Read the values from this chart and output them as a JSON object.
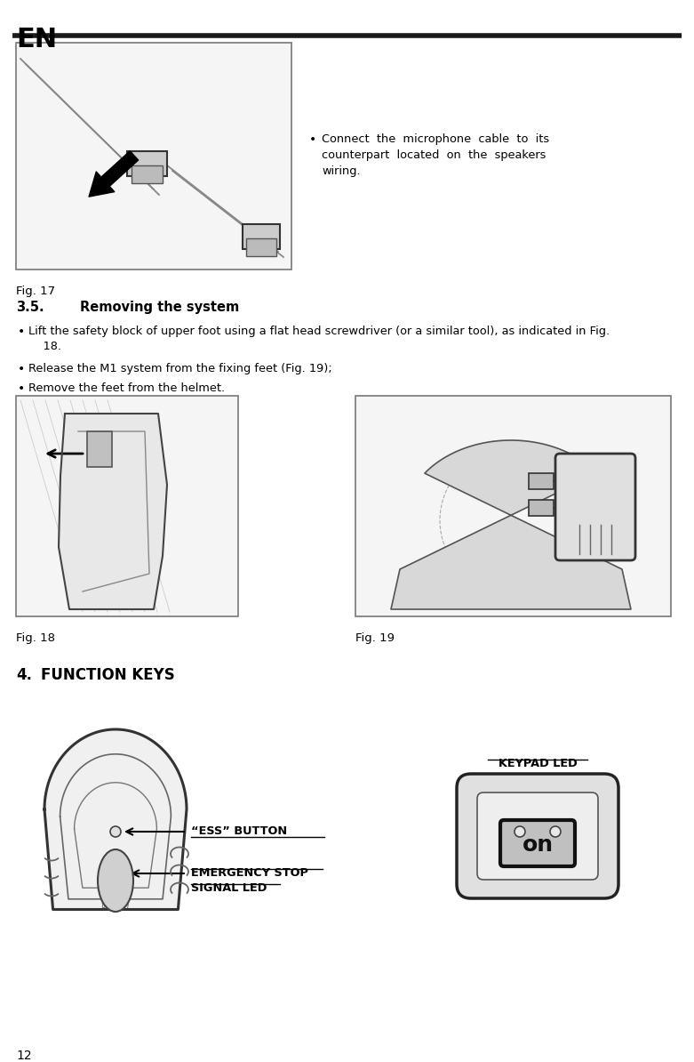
{
  "page_num": "12",
  "lang_tag": "EN",
  "fig17_caption": "Fig. 17",
  "fig18_caption": "Fig. 18",
  "fig19_caption": "Fig. 19",
  "section_35_num": "3.5.",
  "section_35_title": "Removing the system",
  "section_4_num": "4.",
  "section_4_title": "FUNCTION KEYS",
  "bullet1_line1": "Lift the safety block of upper foot using a flat head screwdriver (or a similar tool), as indicated in Fig.",
  "bullet1_line2": "    18.",
  "bullet2": "Release the M1 system from the fixing feet (Fig. 19);",
  "bullet3": "Remove the feet from the helmet.",
  "connect_bullet": "•",
  "connect_line1": "Connect  the  microphone  cable  to  its",
  "connect_line2": "counterpart  located  on  the  speakers",
  "connect_line3": "wiring.",
  "ess_label": "“ESS” BUTTON",
  "emergency_line1": "EMERGENCY STOP",
  "emergency_line2": "SIGNAL LED",
  "keypad_label": "KEYPAD LED",
  "bg_color": "#ffffff",
  "text_color": "#000000"
}
